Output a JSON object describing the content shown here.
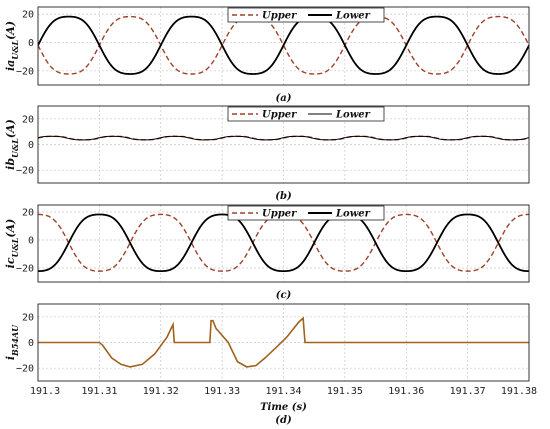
{
  "figure": {
    "xlabel": "Time (s)",
    "final_caption": "(d)"
  },
  "colors": {
    "upper": "#A0402A",
    "lower": "#000000",
    "bypass": "#A0621C",
    "grid": "#c8c8c8"
  },
  "chart_data": [
    {
      "type": "line",
      "caption": "(a)",
      "ylabel": "ia",
      "ylabel_sub": "U&L",
      "ylabel_unit": "(A)",
      "xlim": [
        191.3,
        191.38
      ],
      "ylim": [
        -30,
        25
      ],
      "yticks": [
        "20",
        "0",
        "−20"
      ],
      "ytick_values": [
        20,
        0,
        -20
      ],
      "legend": {
        "placement": "top-center",
        "entries": [
          "Upper",
          "Lower"
        ]
      },
      "grid": true,
      "series": [
        {
          "name": "Upper",
          "style": "dashed",
          "offset": -2,
          "amplitude": 22,
          "frequency_hz": 50,
          "phase_deg": 180
        },
        {
          "name": "Lower",
          "style": "solid",
          "offset": -2,
          "amplitude": 22,
          "frequency_hz": 50,
          "phase_deg": 0
        }
      ]
    },
    {
      "type": "line",
      "caption": "(b)",
      "ylabel": "ib",
      "ylabel_sub": "U&L",
      "ylabel_unit": "(A)",
      "xlim": [
        191.3,
        191.38
      ],
      "ylim": [
        -30,
        30
      ],
      "yticks": [
        "20",
        "0",
        "−20"
      ],
      "ytick_values": [
        20,
        0,
        -20
      ],
      "legend": {
        "placement": "top-center",
        "entries": [
          "Upper",
          "Lower"
        ]
      },
      "grid": true,
      "series": [
        {
          "name": "Upper",
          "style": "dashed",
          "offset": 5,
          "amplitude": 1.5,
          "frequency_hz": 100,
          "phase_deg": 0
        },
        {
          "name": "Lower",
          "style": "solid",
          "offset": 5,
          "amplitude": 1.5,
          "frequency_hz": 100,
          "phase_deg": 10
        }
      ]
    },
    {
      "type": "line",
      "caption": "(c)",
      "ylabel": "ic",
      "ylabel_sub": "U&L",
      "ylabel_unit": "(A)",
      "xlim": [
        191.3,
        191.38
      ],
      "ylim": [
        -30,
        25
      ],
      "yticks": [
        "20",
        "0",
        "−20"
      ],
      "ytick_values": [
        20,
        0,
        -20
      ],
      "legend": {
        "placement": "top-center",
        "entries": [
          "Upper",
          "Lower"
        ]
      },
      "grid": true,
      "series": [
        {
          "name": "Upper",
          "style": "dashed",
          "offset": -2,
          "amplitude": 22,
          "frequency_hz": 50,
          "phase_deg": 90
        },
        {
          "name": "Lower",
          "style": "solid",
          "offset": -2,
          "amplitude": 22,
          "frequency_hz": 50,
          "phase_deg": 270
        }
      ]
    },
    {
      "type": "line",
      "caption": "",
      "ylabel": "i",
      "ylabel_sub": "B54AU",
      "ylabel_unit": "",
      "xlim": [
        191.3,
        191.38
      ],
      "ylim": [
        -30,
        30
      ],
      "yticks": [
        "20",
        "0",
        "−20"
      ],
      "ytick_values": [
        20,
        0,
        -20
      ],
      "xticks": [
        "191.3",
        "191.31",
        "191.32",
        "191.33",
        "191.34",
        "191.35",
        "191.36",
        "191.37",
        "191.38"
      ],
      "xtick_values": [
        191.3,
        191.31,
        191.32,
        191.33,
        191.34,
        191.35,
        191.36,
        191.37,
        191.38
      ],
      "grid": true,
      "series": [
        {
          "name": "",
          "style": "solid",
          "x": [
            191.3,
            191.31,
            191.3105,
            191.312,
            191.3135,
            191.315,
            191.317,
            191.319,
            191.321,
            191.322,
            191.3222,
            191.328,
            191.3282,
            191.3285,
            191.329,
            191.331,
            191.3325,
            191.334,
            191.3355,
            191.337,
            191.339,
            191.3405,
            191.3425,
            191.3432,
            191.3435,
            191.38
          ],
          "y": [
            0,
            0,
            -2,
            -12,
            -17,
            -19,
            -17,
            -9,
            4,
            14,
            0,
            0,
            17,
            17,
            11,
            0,
            -15,
            -19,
            -18,
            -12,
            -3,
            4,
            16,
            19,
            0,
            0
          ]
        }
      ]
    }
  ]
}
